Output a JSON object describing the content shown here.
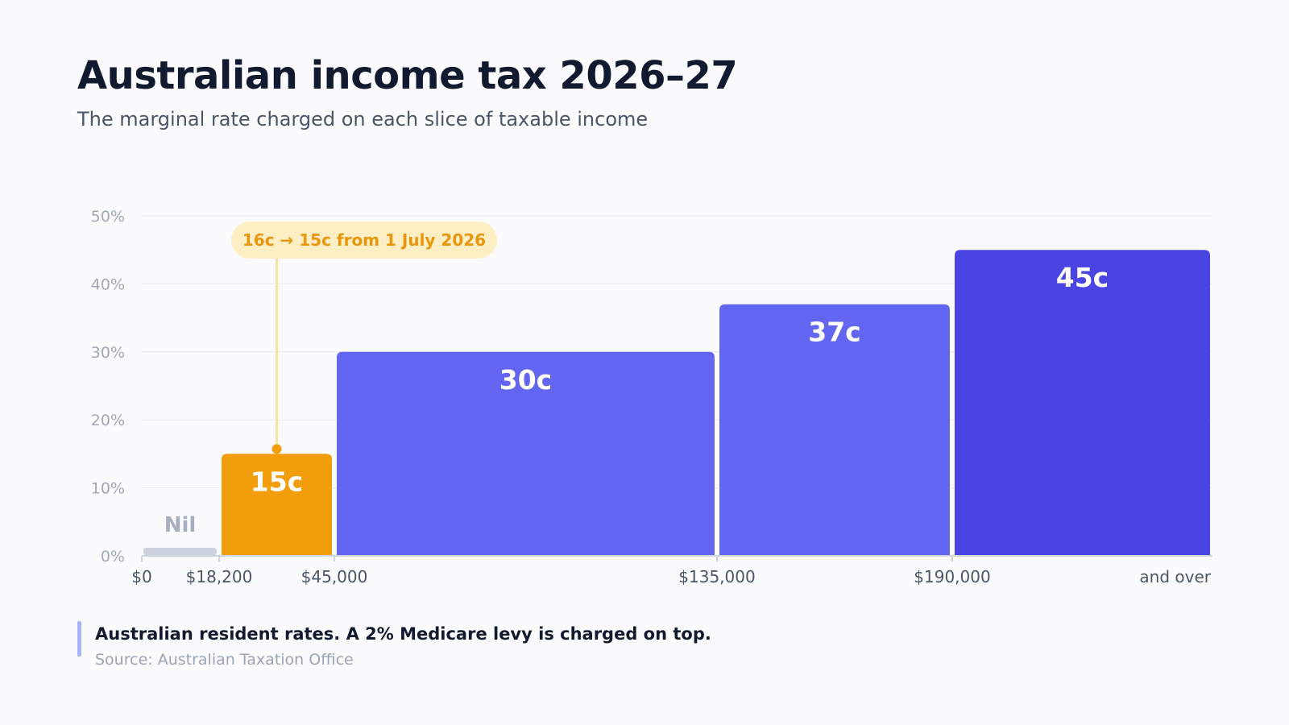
{
  "title": "Australian income tax 2026–27",
  "subtitle": "The marginal rate charged on each slice of taxable income",
  "chart_data": {
    "type": "bar",
    "title": "Australian income tax 2026–27",
    "subtitle": "The marginal rate charged on each slice of taxable income",
    "y_unit": "%",
    "ylim": [
      0,
      50
    ],
    "y_ticks": [
      0,
      10,
      20,
      30,
      40,
      50
    ],
    "y_tick_labels": [
      "0%",
      "10%",
      "20%",
      "30%",
      "40%",
      "50%"
    ],
    "grid": true,
    "x_tick_labels": [
      "$0",
      "$18,200",
      "$45,000",
      "$135,000",
      "$190,000",
      "and over"
    ],
    "brackets": [
      {
        "from": 0,
        "to": 18200,
        "rate": 0,
        "label": "Nil",
        "color": "#cbd2dd"
      },
      {
        "from": 18200,
        "to": 45000,
        "rate": 15,
        "label": "15c",
        "color": "#f29d0b"
      },
      {
        "from": 45000,
        "to": 135000,
        "rate": 30,
        "label": "30c",
        "color": "#6366f0"
      },
      {
        "from": 135000,
        "to": 190000,
        "rate": 37,
        "label": "37c",
        "color": "#6366f0"
      },
      {
        "from": 190000,
        "to": null,
        "rate": 45,
        "label": "45c",
        "color": "#4a44e2"
      }
    ],
    "annotation": {
      "text": "16c → 15c from 1 July 2026",
      "bracket_index": 1,
      "color": "#f29d0b",
      "background": "#fdefc3"
    }
  },
  "footnote": "Australian resident rates. A 2% Medicare levy is charged on top.",
  "source": "Source: Australian Taxation Office"
}
